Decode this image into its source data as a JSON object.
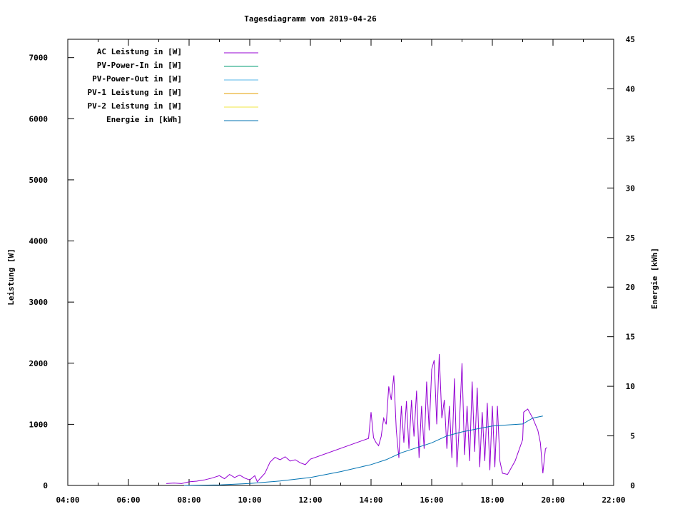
{
  "chart_data": {
    "type": "line",
    "title": "Tagesdiagramm vom 2019-04-26",
    "xlabel": "",
    "ylabel": "Leistung [W]",
    "y2label": "Energie [kWh]",
    "xlim": [
      "04:00",
      "22:00"
    ],
    "ylim": [
      0,
      7300
    ],
    "y2lim": [
      0,
      45
    ],
    "x_ticks": [
      "04:00",
      "06:00",
      "08:00",
      "10:00",
      "12:00",
      "14:00",
      "16:00",
      "18:00",
      "20:00",
      "22:00"
    ],
    "y_ticks": [
      "0",
      "1000",
      "2000",
      "3000",
      "4000",
      "5000",
      "6000",
      "7000"
    ],
    "y2_ticks": [
      "0",
      "5",
      "10",
      "15",
      "20",
      "25",
      "30",
      "35",
      "40",
      "45"
    ],
    "grid": false,
    "legend_position": "top-left",
    "legend": [
      {
        "name": "AC Leistung in [W]",
        "color": "#9400d3"
      },
      {
        "name": "PV-Power-In in [W]",
        "color": "#009e73"
      },
      {
        "name": "PV-Power-Out in [W]",
        "color": "#56b4e9"
      },
      {
        "name": "PV-1 Leistung in [W]",
        "color": "#e69f00"
      },
      {
        "name": "PV-2 Leistung in [W]",
        "color": "#f0e442"
      },
      {
        "name": "Energie in [kWh]",
        "color": "#0072b2"
      }
    ],
    "series": [
      {
        "name": "AC Leistung in [W]",
        "axis": "left",
        "color": "#9400d3",
        "x": [
          "07:15",
          "07:30",
          "07:45",
          "08:00",
          "08:15",
          "08:30",
          "08:45",
          "09:00",
          "09:10",
          "09:20",
          "09:30",
          "09:40",
          "09:50",
          "10:00",
          "10:10",
          "10:15",
          "10:20",
          "10:30",
          "10:40",
          "10:50",
          "11:00",
          "11:10",
          "11:20",
          "11:30",
          "11:40",
          "11:50",
          "12:00",
          "13:55",
          "14:00",
          "14:05",
          "14:10",
          "14:15",
          "14:20",
          "14:25",
          "14:30",
          "14:35",
          "14:40",
          "14:45",
          "14:50",
          "14:55",
          "15:00",
          "15:05",
          "15:10",
          "15:15",
          "15:20",
          "15:25",
          "15:30",
          "15:35",
          "15:40",
          "15:45",
          "15:50",
          "15:55",
          "16:00",
          "16:05",
          "16:10",
          "16:15",
          "16:20",
          "16:25",
          "16:30",
          "16:35",
          "16:40",
          "16:45",
          "16:50",
          "16:55",
          "17:00",
          "17:05",
          "17:10",
          "17:15",
          "17:20",
          "17:25",
          "17:30",
          "17:35",
          "17:40",
          "17:45",
          "17:50",
          "17:55",
          "18:00",
          "18:05",
          "18:10",
          "18:15",
          "18:20",
          "18:30",
          "18:45",
          "19:00",
          "19:02",
          "19:10",
          "19:20",
          "19:30",
          "19:35",
          "19:40",
          "19:45",
          "19:48"
        ],
        "values": [
          30,
          40,
          30,
          60,
          70,
          90,
          120,
          160,
          110,
          180,
          130,
          170,
          120,
          90,
          160,
          60,
          110,
          200,
          380,
          460,
          420,
          470,
          400,
          420,
          370,
          340,
          430,
          770,
          1200,
          780,
          700,
          650,
          800,
          1100,
          1000,
          1620,
          1400,
          1800,
          900,
          450,
          1300,
          700,
          1380,
          600,
          1400,
          800,
          1550,
          450,
          1300,
          600,
          1700,
          900,
          1900,
          2050,
          1000,
          2150,
          1100,
          1400,
          600,
          1300,
          450,
          1750,
          300,
          1050,
          2000,
          500,
          1300,
          400,
          1700,
          550,
          1600,
          300,
          1200,
          400,
          1350,
          250,
          1300,
          300,
          1300,
          400,
          200,
          180,
          400,
          750,
          1200,
          1250,
          1100,
          900,
          700,
          200,
          600,
          620
        ]
      },
      {
        "name": "Energie in [kWh]",
        "axis": "right",
        "color": "#0072b2",
        "x": [
          "07:50",
          "09:00",
          "10:00",
          "11:00",
          "12:00",
          "13:00",
          "14:00",
          "14:30",
          "15:00",
          "15:30",
          "16:00",
          "16:30",
          "17:00",
          "17:30",
          "18:00",
          "18:30",
          "19:00",
          "19:20",
          "19:40"
        ],
        "values": [
          0,
          0.05,
          0.2,
          0.45,
          0.8,
          1.4,
          2.1,
          2.6,
          3.3,
          3.8,
          4.3,
          5.0,
          5.4,
          5.7,
          6.0,
          6.1,
          6.2,
          6.8,
          7.0
        ]
      }
    ]
  }
}
